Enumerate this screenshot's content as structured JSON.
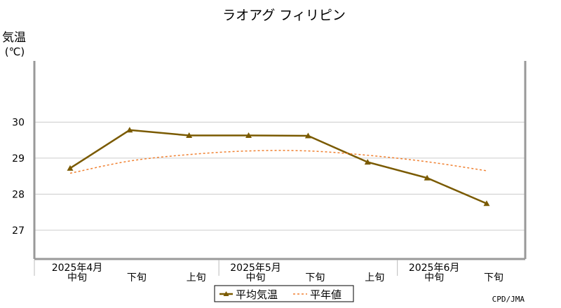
{
  "chart_data": {
    "type": "line",
    "title": "ラオアグ フィリピン",
    "ylabel_line1": "気温",
    "ylabel_line2": "(℃)",
    "ylim": [
      26.2,
      31.7
    ],
    "yticks": [
      27,
      28,
      29,
      30
    ],
    "categories": [
      "中旬",
      "下旬",
      "上旬",
      "中旬",
      "下旬",
      "上旬",
      "中旬",
      "下旬"
    ],
    "months": [
      {
        "label": "2025年4月",
        "index": 0
      },
      {
        "label": "2025年5月",
        "index": 3
      },
      {
        "label": "2025年6月",
        "index": 6
      }
    ],
    "series": [
      {
        "name": "平均気温",
        "style": "solid-triangle",
        "color": "#7a5a00",
        "values": [
          28.72,
          29.78,
          29.63,
          29.63,
          29.62,
          28.89,
          28.45,
          27.74
        ]
      },
      {
        "name": "平年値",
        "style": "dashed",
        "color": "#f08030",
        "values": [
          28.58,
          28.92,
          29.1,
          29.2,
          29.2,
          29.08,
          28.9,
          28.65
        ]
      }
    ],
    "grid": true,
    "legend_position": "bottom-center"
  },
  "footer": {
    "credit": "CPD/JMA"
  }
}
